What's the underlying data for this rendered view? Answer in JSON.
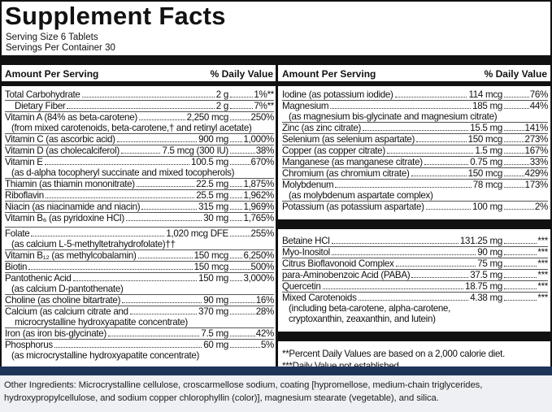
{
  "header": {
    "title": "Supplement Facts",
    "serving_size": "Serving Size 6 Tablets",
    "servings_per_container": "Servings Per Container 30"
  },
  "columns": [
    {
      "amount_header": "Amount Per Serving",
      "dv_header": "% Daily Value"
    },
    {
      "amount_header": "Amount Per Serving",
      "dv_header": "% Daily Value"
    }
  ],
  "left": {
    "items": [
      {
        "label": "Total Carbohydrate",
        "amount": "2 g",
        "dv": "1%**"
      },
      {
        "label": "Dietary Fiber",
        "amount": "2 g",
        "dv": "7%**"
      },
      {
        "label": "Vitamin A (84% as beta-carotene)",
        "amount": "2,250 mcg",
        "dv": "250%",
        "notes": [
          "(from mixed carotenoids, beta-carotene,† and retinyl acetate)"
        ]
      },
      {
        "label": "Vitamin C (as ascorbic acid)",
        "amount": "900 mg",
        "dv": "1,000%"
      },
      {
        "label": "Vitamin D (as cholecalciferol)",
        "amount": "7.5 mcg (300 IU)",
        "dv": "38%"
      },
      {
        "label": "Vitamin E",
        "amount": "100.5 mg",
        "dv": "670%",
        "notes": [
          "(as d-alpha tocopheryl succinate and mixed tocopherols)"
        ]
      },
      {
        "label": "Thiamin (as thiamin mononitrate)",
        "amount": "22.5 mg",
        "dv": "1,875%"
      },
      {
        "label": "Riboflavin",
        "amount": "25.5 mg",
        "dv": "1,962%"
      },
      {
        "label": "Niacin (as niacinamide and niacin)",
        "amount": "315 mg",
        "dv": "1,969%"
      },
      {
        "label": "Vitamin B₆ (as pyridoxine HCl)",
        "amount": "30 mg",
        "dv": "1,765%"
      },
      {
        "label": "Folate",
        "amount": "1,020 mcg DFE",
        "dv": "255%",
        "notes": [
          "(as calcium L-5-methyltetrahydrofolate)††"
        ]
      },
      {
        "label": "Vitamin B₁₂ (as methylcobalamin)",
        "amount": "150 mcg",
        "dv": "6,250%"
      },
      {
        "label": "Biotin",
        "amount": "150 mcg",
        "dv": "500%"
      },
      {
        "label": "Pantothenic Acid",
        "amount": "150 mg",
        "dv": "3,000%",
        "notes": [
          "(as calcium D-pantothenate)"
        ]
      },
      {
        "label": "Choline (as choline bitartrate)",
        "amount": "90 mg",
        "dv": "16%"
      },
      {
        "label": "Calcium (as calcium citrate and",
        "amount": "370 mg",
        "dv": "28%",
        "notes": [
          "microcrystalline hydroxyapatite concentrate)"
        ]
      },
      {
        "label": "Iron (as iron bis-glycinate)",
        "amount": "7.5 mg",
        "dv": "42%"
      },
      {
        "label": "Phosphorus",
        "amount": "60 mg",
        "dv": "5%",
        "notes": [
          "(as microcrystalline hydroxyapatite concentrate)"
        ]
      }
    ]
  },
  "right": {
    "sections": [
      {
        "items": [
          {
            "label": "Iodine (as potassium iodide)",
            "amount": "114 mcg",
            "dv": "76%"
          },
          {
            "label": "Magnesium",
            "amount": "185 mg",
            "dv": "44%",
            "notes": [
              "(as magnesium bis-glycinate and magnesium citrate)"
            ]
          },
          {
            "label": "Zinc (as zinc citrate)",
            "amount": "15.5 mg",
            "dv": "141%"
          },
          {
            "label": "Selenium (as selenium aspartate)",
            "amount": "150 mcg",
            "dv": "273%"
          },
          {
            "label": "Copper (as copper citrate)",
            "amount": "1.5 mg",
            "dv": "167%"
          },
          {
            "label": "Manganese (as manganese citrate)",
            "amount": "0.75 mg",
            "dv": "33%"
          },
          {
            "label": "Chromium (as chromium citrate)",
            "amount": "150 mcg",
            "dv": "429%"
          },
          {
            "label": "Molybdenum",
            "amount": "78 mcg",
            "dv": "173%",
            "notes": [
              "(as molybdenum aspartate complex)"
            ]
          },
          {
            "label": "Potassium (as potassium aspartate)",
            "amount": "100 mg",
            "dv": "2%"
          }
        ]
      },
      {
        "items": [
          {
            "label": "Betaine HCl",
            "amount": "131.25 mg",
            "dv": "***"
          },
          {
            "label": "Myo-Inositol",
            "amount": "90 mg",
            "dv": "***"
          },
          {
            "label": "Citrus Bioflavonoid Complex",
            "amount": "75 mg",
            "dv": "***"
          },
          {
            "label": "para-Aminobenzoic Acid (PABA)",
            "amount": "37.5 mg",
            "dv": "***"
          },
          {
            "label": "Quercetin",
            "amount": "18.75 mg",
            "dv": "***"
          },
          {
            "label": "Mixed Carotenoids",
            "amount": "4.38 mg",
            "dv": "***",
            "notes": [
              "(including beta-carotene, alpha-carotene,",
              "cryptoxanthin, zeaxanthin, and lutein)"
            ]
          }
        ]
      }
    ],
    "footnotes": [
      "**Percent Daily Values are based on a 2,000 calorie diet.",
      "***Daily Value not established."
    ]
  },
  "other_ingredients": "Other Ingredients: Microcrystalline cellulose, croscarmellose sodium, coating [hypromellose, medium-chain triglycerides, hydroxypropylcellulose, and sodium copper chlorophyllin (color)], magnesium stearate (vegetable), and silica."
}
